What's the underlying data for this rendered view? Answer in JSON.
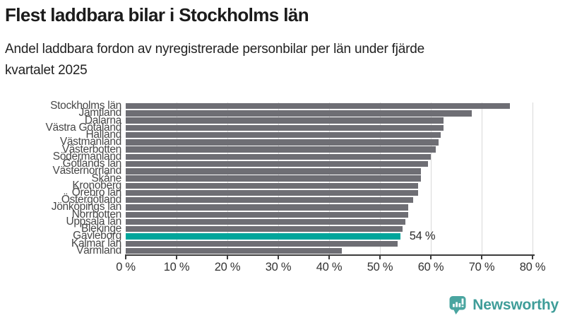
{
  "header": {
    "title": "Flest laddbara bilar i Stockholms län",
    "subtitle_lines": [
      "Andel laddbara fordon av nyregistrerade personbilar per län under fjärde",
      "kvartalet 2025"
    ]
  },
  "colors": {
    "bar_default": "#6e6e74",
    "bar_highlight": "#00a59b",
    "gridline": "#d9d9d9",
    "axis": "#3c3c3c",
    "category_label": "#474747",
    "tick_label": "#333333",
    "logo_teal": "#3f9d99"
  },
  "chart_data": {
    "type": "bar",
    "orientation": "horizontal",
    "title": "Flest laddbara bilar i Stockholms län",
    "subtitle": "Andel laddbara fordon av nyregistrerade personbilar per län under fjärde kvartalet 2025",
    "categories": [
      "Stockholms län",
      "Jämtland",
      "Dalarna",
      "Västra Götaland",
      "Halland",
      "Västmanland",
      "Västerbotten",
      "Södermanland",
      "Gotlands län",
      "Västernorrland",
      "Skåne",
      "Kronoberg",
      "Örebro län",
      "Östergötland",
      "Jönköpings län",
      "Norrbotten",
      "Uppsala län",
      "Blekinge",
      "Gävleborg",
      "Kalmar län",
      "Värmland"
    ],
    "values": [
      75.5,
      68,
      62.5,
      62.5,
      62,
      61.5,
      61,
      60,
      59.5,
      58,
      58,
      57.5,
      57.5,
      56.5,
      55.5,
      55.5,
      55,
      54.5,
      54,
      53.5,
      42.5
    ],
    "unit": "%",
    "highlight_category": "Gävleborg",
    "annotation": {
      "text": "54 %",
      "category": "Gävleborg"
    },
    "xlim": [
      0,
      80
    ],
    "x_ticks": [
      "0 %",
      "10 %",
      "20 %",
      "30 %",
      "40 %",
      "50 %",
      "60 %",
      "70 %",
      "80 %"
    ],
    "grid": true,
    "legend": false
  },
  "footer": {
    "brand": "Newsworthy"
  }
}
